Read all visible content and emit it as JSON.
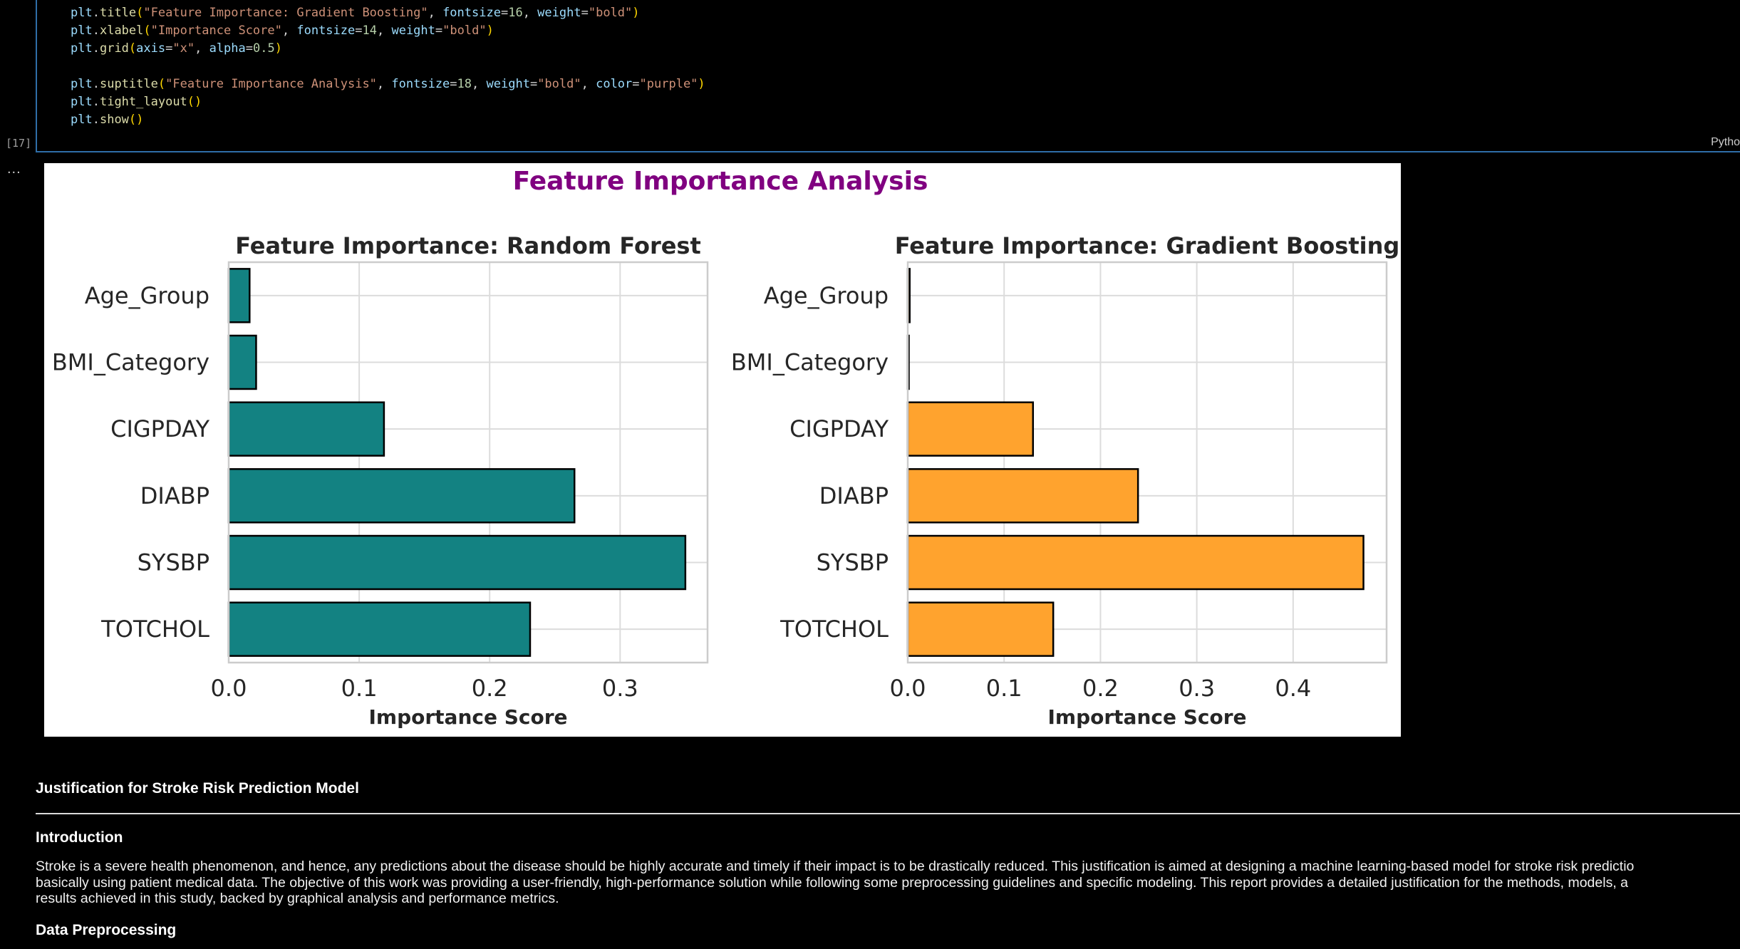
{
  "code_cell": {
    "lines": [
      [
        [
          "plt",
          "var"
        ],
        [
          ".",
          "punc"
        ],
        [
          "title",
          "fn"
        ],
        [
          "(",
          "paren"
        ],
        [
          "\"Feature Importance: Gradient Boosting\"",
          "str"
        ],
        [
          ", ",
          "punc"
        ],
        [
          "fontsize",
          "param"
        ],
        [
          "=",
          "punc"
        ],
        [
          "16",
          "num"
        ],
        [
          ", ",
          "punc"
        ],
        [
          "weight",
          "param"
        ],
        [
          "=",
          "punc"
        ],
        [
          "\"bold\"",
          "str"
        ],
        [
          ")",
          "paren"
        ]
      ],
      [
        [
          "plt",
          "var"
        ],
        [
          ".",
          "punc"
        ],
        [
          "xlabel",
          "fn"
        ],
        [
          "(",
          "paren"
        ],
        [
          "\"Importance Score\"",
          "str"
        ],
        [
          ", ",
          "punc"
        ],
        [
          "fontsize",
          "param"
        ],
        [
          "=",
          "punc"
        ],
        [
          "14",
          "num"
        ],
        [
          ", ",
          "punc"
        ],
        [
          "weight",
          "param"
        ],
        [
          "=",
          "punc"
        ],
        [
          "\"bold\"",
          "str"
        ],
        [
          ")",
          "paren"
        ]
      ],
      [
        [
          "plt",
          "var"
        ],
        [
          ".",
          "punc"
        ],
        [
          "grid",
          "fn"
        ],
        [
          "(",
          "paren"
        ],
        [
          "axis",
          "param"
        ],
        [
          "=",
          "punc"
        ],
        [
          "\"x\"",
          "str"
        ],
        [
          ", ",
          "punc"
        ],
        [
          "alpha",
          "param"
        ],
        [
          "=",
          "punc"
        ],
        [
          "0.5",
          "num"
        ],
        [
          ")",
          "paren"
        ]
      ],
      [],
      [
        [
          "plt",
          "var"
        ],
        [
          ".",
          "punc"
        ],
        [
          "suptitle",
          "fn"
        ],
        [
          "(",
          "paren"
        ],
        [
          "\"Feature Importance Analysis\"",
          "str"
        ],
        [
          ", ",
          "punc"
        ],
        [
          "fontsize",
          "param"
        ],
        [
          "=",
          "punc"
        ],
        [
          "18",
          "num"
        ],
        [
          ", ",
          "punc"
        ],
        [
          "weight",
          "param"
        ],
        [
          "=",
          "punc"
        ],
        [
          "\"bold\"",
          "str"
        ],
        [
          ", ",
          "punc"
        ],
        [
          "color",
          "param"
        ],
        [
          "=",
          "punc"
        ],
        [
          "\"purple\"",
          "str"
        ],
        [
          ")",
          "paren"
        ]
      ],
      [
        [
          "plt",
          "var"
        ],
        [
          ".",
          "punc"
        ],
        [
          "tight_layout",
          "fn"
        ],
        [
          "()",
          "paren"
        ]
      ],
      [
        [
          "plt",
          "var"
        ],
        [
          ".",
          "punc"
        ],
        [
          "show",
          "fn"
        ],
        [
          "()",
          "paren"
        ]
      ]
    ],
    "execution_count": "[17]",
    "language": "Pytho"
  },
  "output": {
    "ellipsis": "..."
  },
  "chart_data": {
    "suptitle": "Feature Importance Analysis",
    "suptitle_color": "#800080",
    "charts": [
      {
        "type": "bar",
        "orientation": "horizontal",
        "title": "Feature Importance: Random Forest",
        "xlabel": "Importance Score",
        "ylabel": "",
        "categories": [
          "Age_Group",
          "BMI_Category",
          "CIGPDAY",
          "DIABP",
          "SYSBP",
          "TOTCHOL"
        ],
        "values": [
          0.016,
          0.021,
          0.119,
          0.265,
          0.35,
          0.231
        ],
        "xlim": [
          0,
          0.367
        ],
        "xticks": [
          "0.0",
          "0.1",
          "0.2",
          "0.3"
        ],
        "bar_color": "#138282",
        "grid": "x"
      },
      {
        "type": "bar",
        "orientation": "horizontal",
        "title": "Feature Importance: Gradient Boosting",
        "xlabel": "Importance Score",
        "ylabel": "",
        "categories": [
          "Age_Group",
          "BMI_Category",
          "CIGPDAY",
          "DIABP",
          "SYSBP",
          "TOTCHOL"
        ],
        "values": [
          0.002,
          0.001,
          0.13,
          0.239,
          0.473,
          0.151
        ],
        "xlim": [
          0,
          0.497
        ],
        "xticks": [
          "0.0",
          "0.1",
          "0.2",
          "0.3",
          "0.4"
        ],
        "bar_color": "#ffa32e",
        "grid": "x"
      }
    ]
  },
  "markdown": {
    "title": "Justification for Stroke Risk Prediction Model",
    "intro_heading": "Introduction",
    "intro_lines": [
      "Stroke is a severe health phenomenon, and hence, any predictions about the disease should be highly accurate and timely if their impact is to be drastically reduced. This justification is aimed at designing a machine learning-based model for stroke risk predictio",
      "basically using patient medical data. The objective of this work was providing a user-friendly, high-performance solution while following some preprocessing guidelines and specific modeling. This report provides a detailed justification for the methods, models, a",
      "results achieved in this study, backed by graphical analysis and performance metrics."
    ],
    "data_heading": "Data Preprocessing"
  }
}
